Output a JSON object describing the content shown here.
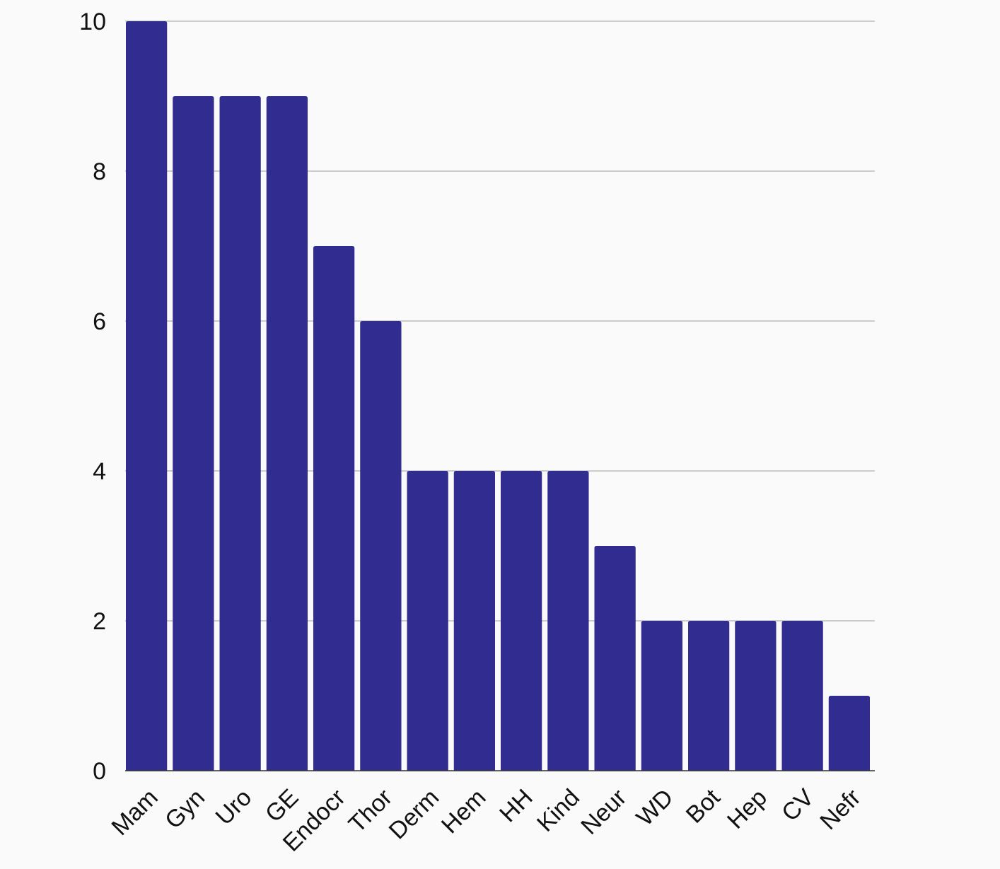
{
  "chart_data": {
    "type": "bar",
    "categories": [
      "Mam",
      "Gyn",
      "Uro",
      "GE",
      "Endocr",
      "Thor",
      "Derm",
      "Hem",
      "HH",
      "Kind",
      "Neur",
      "WD",
      "Bot",
      "Hep",
      "CV",
      "Nefr"
    ],
    "values": [
      10,
      9,
      9,
      9,
      7,
      6,
      4,
      4,
      4,
      4,
      3,
      2,
      2,
      2,
      2,
      1
    ],
    "ylim": [
      0,
      10
    ],
    "yticks": [
      0,
      2,
      4,
      6,
      8,
      10
    ],
    "bar_color": "#312c8f",
    "grid": true,
    "legend": "none"
  }
}
